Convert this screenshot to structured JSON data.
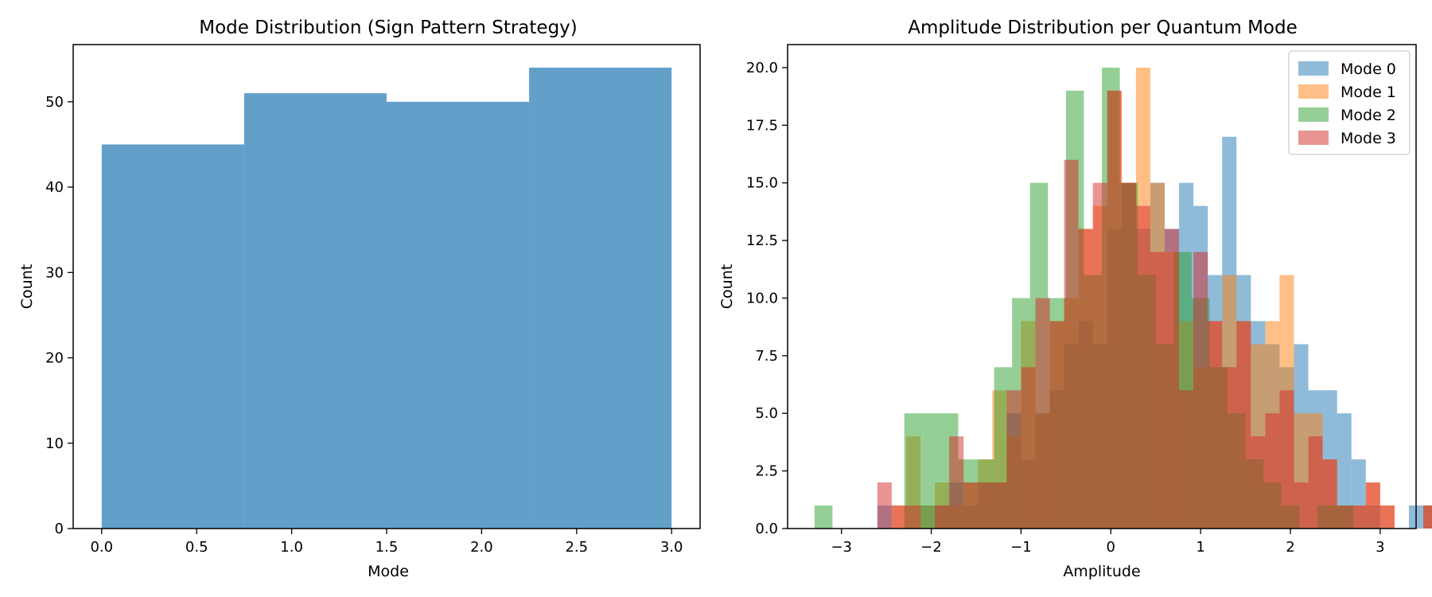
{
  "chart_data": [
    {
      "type": "bar",
      "title": "Mode Distribution (Sign Pattern Strategy)",
      "xlabel": "Mode",
      "ylabel": "Count",
      "color": "#1f77b4",
      "alpha": 0.7,
      "bins": [
        {
          "x0": 0.0,
          "x1": 0.75,
          "value": 45
        },
        {
          "x0": 0.75,
          "x1": 1.5,
          "value": 51
        },
        {
          "x0": 1.5,
          "x1": 2.25,
          "value": 50
        },
        {
          "x0": 2.25,
          "x1": 3.0,
          "value": 54
        }
      ],
      "xlim": [
        -0.15,
        3.15
      ],
      "ylim": [
        0,
        56.7
      ],
      "xticks": [
        0.0,
        0.5,
        1.0,
        1.5,
        2.0,
        2.5,
        3.0
      ],
      "xtick_labels": [
        "0.0",
        "0.5",
        "1.0",
        "1.5",
        "2.0",
        "2.5",
        "3.0"
      ],
      "yticks": [
        0,
        10,
        20,
        30,
        40,
        50
      ],
      "ytick_labels": [
        "0",
        "10",
        "20",
        "30",
        "40",
        "50"
      ]
    },
    {
      "type": "bar",
      "title": "Amplitude Distribution per Quantum Mode",
      "xlabel": "Amplitude",
      "ylabel": "Count",
      "alpha": 0.5,
      "legend_position": "top-right",
      "xlim": [
        -3.6,
        3.4
      ],
      "ylim": [
        0,
        21
      ],
      "xticks": [
        -3,
        -2,
        -1,
        0,
        1,
        2,
        3
      ],
      "xtick_labels": [
        "−3",
        "−2",
        "−1",
        "0",
        "1",
        "2",
        "3"
      ],
      "yticks": [
        0,
        2.5,
        5,
        7.5,
        10,
        12.5,
        15,
        17.5,
        20
      ],
      "ytick_labels": [
        "0.0",
        "2.5",
        "5.0",
        "7.5",
        "10.0",
        "12.5",
        "15.0",
        "17.5",
        "20.0"
      ],
      "series": [
        {
          "name": "Mode 0",
          "color": "#1f77b4",
          "x_start": -2.6,
          "bin_width": 0.16,
          "values": [
            1,
            0,
            0,
            1,
            1,
            2,
            1,
            2,
            2,
            5,
            3,
            5,
            6,
            8,
            9,
            8,
            13,
            15,
            13,
            15,
            13,
            15,
            14,
            11,
            17,
            11,
            9,
            8,
            7,
            8,
            6,
            6,
            5,
            3,
            1,
            0,
            0,
            1,
            1,
            0,
            0,
            1,
            0
          ]
        },
        {
          "name": "Mode 1",
          "color": "#ff7f0e",
          "x_start": -2.6,
          "bin_width": 0.16,
          "values": [
            0,
            1,
            4,
            1,
            2,
            1,
            2,
            3,
            6,
            4,
            9,
            5,
            9,
            10,
            13,
            14,
            19,
            15,
            20,
            15,
            12,
            9,
            7,
            9,
            11,
            9,
            8,
            9,
            11,
            5,
            5,
            3,
            1,
            1,
            2,
            1,
            0,
            0,
            1,
            0,
            0,
            0,
            0
          ]
        },
        {
          "name": "Mode 2",
          "color": "#2ca02c",
          "x_start": -3.3,
          "bin_width": 0.2,
          "values": [
            1,
            0,
            0,
            0,
            0,
            5,
            5,
            5,
            3,
            3,
            7,
            10,
            15,
            10,
            19,
            11,
            20,
            15,
            11,
            8,
            12,
            10,
            7,
            5,
            3,
            2,
            1,
            0,
            1,
            1,
            0
          ]
        },
        {
          "name": "Mode 3",
          "color": "#d62728",
          "x_start": -2.6,
          "bin_width": 0.16,
          "values": [
            2,
            1,
            1,
            0,
            1,
            4,
            2,
            2,
            2,
            6,
            7,
            10,
            9,
            16,
            13,
            15,
            19,
            15,
            14,
            12,
            13,
            6,
            12,
            9,
            7,
            9,
            4,
            5,
            6,
            2,
            4,
            3,
            1,
            1,
            2,
            1,
            0,
            0,
            1,
            0,
            0,
            0,
            0
          ]
        }
      ]
    }
  ]
}
